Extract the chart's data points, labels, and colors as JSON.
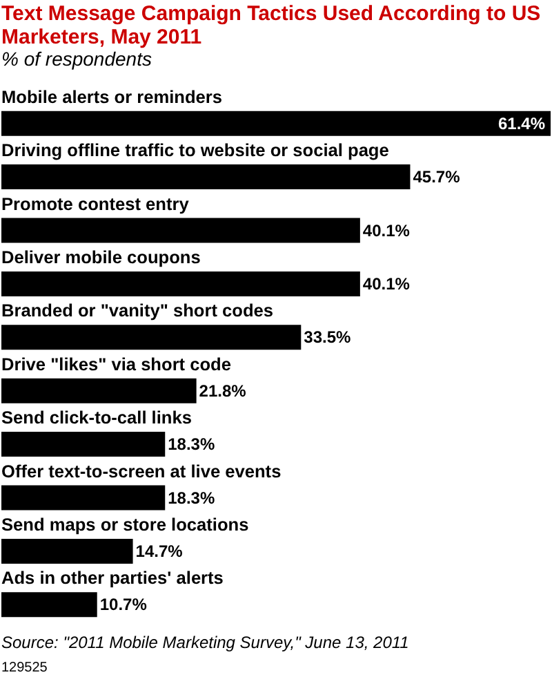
{
  "chart_data": {
    "type": "bar",
    "orientation": "horizontal",
    "title": "Text Message Campaign Tactics Used According to US Marketers, May 2011",
    "subtitle": "% of respondents",
    "categories": [
      "Mobile alerts or reminders",
      "Driving offline traffic to website or social page",
      "Promote contest entry",
      "Deliver mobile coupons",
      "Branded or \"vanity\" short codes",
      "Drive \"likes\" via short code",
      "Send click-to-call links",
      "Offer text-to-screen at live events",
      "Send maps or store locations",
      "Ads in other parties' alerts"
    ],
    "values": [
      61.4,
      45.7,
      40.1,
      40.1,
      33.5,
      21.8,
      18.3,
      18.3,
      14.7,
      10.7
    ],
    "value_labels": [
      "61.4%",
      "45.7%",
      "40.1%",
      "40.1%",
      "33.5%",
      "21.8%",
      "18.3%",
      "18.3%",
      "14.7%",
      "10.7%"
    ],
    "color": "#000000",
    "annotations": [
      "Source: \"2011 Mobile Marketing Survey,\" June 13, 2011",
      "129525"
    ]
  }
}
